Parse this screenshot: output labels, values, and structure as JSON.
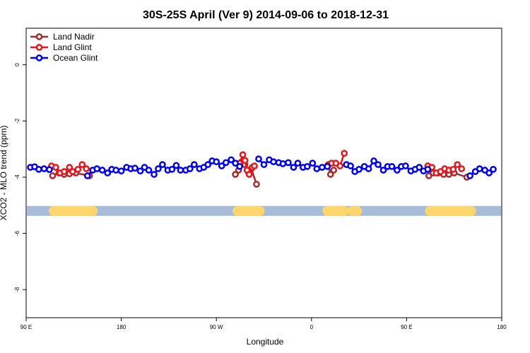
{
  "chart_data": {
    "type": "line",
    "title": "30S-25S April (Ver 9)   2014-09-06 to 2018-12-31",
    "xlabel": "Longitude",
    "ylabel": "XCO2 - MLO trend (ppm)",
    "x_ticks": [
      {
        "value": 90,
        "label": "90 E"
      },
      {
        "value": 180,
        "label": "180"
      },
      {
        "value": 270,
        "label": "90 W"
      },
      {
        "value": 360,
        "label": "0"
      },
      {
        "value": 450,
        "label": "90 E"
      },
      {
        "value": 540,
        "label": "180"
      }
    ],
    "y_ticks": [
      {
        "value": 0,
        "label": "0"
      },
      {
        "value": -2,
        "label": "-2"
      },
      {
        "value": -4,
        "label": "-4"
      },
      {
        "value": -6,
        "label": "-6"
      },
      {
        "value": -8,
        "label": "-8"
      }
    ],
    "xlim": [
      90,
      540
    ],
    "ylim": [
      -9,
      1.3
    ],
    "legend_position": "top-left",
    "land_band": {
      "y": -5.2,
      "ocean_color": "#a7bcd8",
      "land_color": "#fcd66d",
      "land_segments": [
        [
          116,
          153
        ],
        [
          290,
          311
        ],
        [
          375,
          391
        ],
        [
          399,
          403
        ],
        [
          472,
          511
        ]
      ]
    },
    "series": [
      {
        "name": "Land Nadir",
        "color": "#a52a2a",
        "segments": [
          [
            [
              115,
              -3.95
            ],
            [
              121,
              -3.85
            ],
            [
              126,
              -3.9
            ],
            [
              131,
              -3.88
            ],
            [
              137,
              -3.85
            ],
            [
              150,
              -3.95
            ]
          ],
          [
            [
              288,
              -3.9
            ],
            [
              291,
              -3.75
            ],
            [
              294,
              -3.45
            ],
            [
              297,
              -3.55
            ],
            [
              300,
              -3.8
            ],
            [
              303,
              -3.7
            ],
            [
              308,
              -4.25
            ]
          ],
          [
            [
              376,
              -3.55
            ],
            [
              378,
              -3.9
            ],
            [
              381,
              -3.75
            ]
          ],
          [
            [
              471,
              -3.95
            ],
            [
              475,
              -3.85
            ],
            [
              480,
              -3.85
            ],
            [
              485,
              -3.9
            ],
            [
              490,
              -3.9
            ],
            [
              495,
              -3.85
            ],
            [
              507,
              -4.0
            ]
          ]
        ]
      },
      {
        "name": "Land Glint",
        "color": "#e8141c",
        "segments": [
          [
            [
              114,
              -3.6
            ],
            [
              118,
              -3.65
            ],
            [
              122,
              -3.85
            ],
            [
              126,
              -3.8
            ],
            [
              131,
              -3.65
            ],
            [
              134,
              -3.8
            ],
            [
              139,
              -3.72
            ],
            [
              143,
              -3.55
            ],
            [
              147,
              -3.7
            ]
          ],
          [
            [
              292,
              -3.5
            ],
            [
              295,
              -3.2
            ],
            [
              297,
              -3.4
            ],
            [
              299,
              -3.75
            ],
            [
              301,
              -3.9
            ],
            [
              304,
              -3.65
            ],
            [
              306,
              -3.6
            ]
          ],
          [
            [
              375,
              -3.6
            ],
            [
              379,
              -3.5
            ],
            [
              383,
              -3.5
            ],
            [
              387,
              -3.6
            ],
            [
              391,
              -3.15
            ]
          ],
          [
            [
              470,
              -3.6
            ],
            [
              474,
              -3.65
            ],
            [
              478,
              -3.85
            ],
            [
              482,
              -3.8
            ],
            [
              486,
              -3.7
            ],
            [
              490,
              -3.75
            ],
            [
              494,
              -3.72
            ],
            [
              498,
              -3.55
            ],
            [
              502,
              -3.7
            ]
          ]
        ]
      },
      {
        "name": "Ocean Glint",
        "color": "#0000ee",
        "segments": [
          [
            [
              94,
              -3.65
            ],
            [
              98,
              -3.63
            ],
            [
              102,
              -3.72
            ],
            [
              107,
              -3.7
            ],
            [
              112,
              -3.73
            ]
          ],
          [
            [
              148,
              -3.95
            ],
            [
              153,
              -3.75
            ],
            [
              157,
              -3.7
            ],
            [
              162,
              -3.75
            ],
            [
              167,
              -3.85
            ],
            [
              171,
              -3.72
            ],
            [
              175,
              -3.75
            ],
            [
              180,
              -3.78
            ],
            [
              185,
              -3.65
            ],
            [
              189,
              -3.7
            ],
            [
              193,
              -3.68
            ],
            [
              198,
              -3.78
            ],
            [
              202,
              -3.65
            ],
            [
              206,
              -3.75
            ],
            [
              211,
              -3.9
            ],
            [
              215,
              -3.7
            ],
            [
              219,
              -3.55
            ],
            [
              224,
              -3.75
            ],
            [
              228,
              -3.72
            ],
            [
              232,
              -3.58
            ],
            [
              236,
              -3.75
            ],
            [
              241,
              -3.75
            ],
            [
              245,
              -3.7
            ],
            [
              249,
              -3.55
            ],
            [
              254,
              -3.7
            ],
            [
              258,
              -3.65
            ],
            [
              262,
              -3.55
            ],
            [
              266,
              -3.42
            ],
            [
              270,
              -3.45
            ],
            [
              275,
              -3.6
            ],
            [
              279,
              -3.48
            ],
            [
              284,
              -3.38
            ],
            [
              288,
              -3.5
            ],
            [
              292,
              -3.62
            ]
          ],
          [
            [
              310,
              -3.35
            ],
            [
              315,
              -3.55
            ],
            [
              320,
              -3.38
            ],
            [
              324,
              -3.45
            ],
            [
              329,
              -3.48
            ],
            [
              333,
              -3.52
            ],
            [
              338,
              -3.48
            ],
            [
              343,
              -3.65
            ],
            [
              347,
              -3.5
            ],
            [
              352,
              -3.65
            ],
            [
              356,
              -3.62
            ],
            [
              361,
              -3.5
            ],
            [
              365,
              -3.7
            ],
            [
              370,
              -3.65
            ],
            [
              375,
              -3.62
            ]
          ],
          [
            [
              393,
              -3.55
            ],
            [
              397,
              -3.6
            ],
            [
              401,
              -3.8
            ],
            [
              405,
              -3.72
            ],
            [
              410,
              -3.62
            ],
            [
              414,
              -3.7
            ],
            [
              419,
              -3.42
            ],
            [
              423,
              -3.55
            ],
            [
              428,
              -3.75
            ],
            [
              432,
              -3.62
            ],
            [
              436,
              -3.62
            ],
            [
              441,
              -3.75
            ],
            [
              445,
              -3.62
            ],
            [
              449,
              -3.6
            ],
            [
              454,
              -3.78
            ],
            [
              458,
              -3.72
            ],
            [
              462,
              -3.65
            ],
            [
              466,
              -3.78
            ],
            [
              470,
              -3.72
            ]
          ],
          [
            [
              510,
              -3.95
            ],
            [
              515,
              -3.8
            ],
            [
              519,
              -3.7
            ],
            [
              524,
              -3.75
            ],
            [
              528,
              -3.85
            ],
            [
              532,
              -3.72
            ]
          ]
        ]
      }
    ]
  }
}
